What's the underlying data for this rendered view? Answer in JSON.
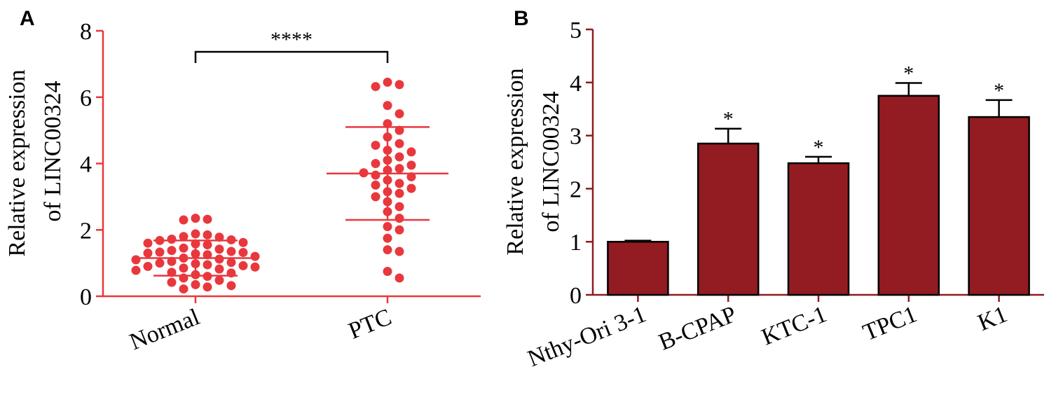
{
  "chart_data": [
    {
      "panel": "A",
      "type": "scatter",
      "ylabel_line1": "Relative expression",
      "ylabel_line2": "of LINC00324",
      "ylim": [
        0,
        8
      ],
      "yticks": [
        0,
        2,
        4,
        6,
        8
      ],
      "categories": [
        "Normal",
        "PTC"
      ],
      "color": "#e8383d",
      "significance": "****",
      "groups": [
        {
          "name": "Normal",
          "mean": 1.15,
          "sd_low": 0.62,
          "sd_high": 1.68,
          "points": [
            2.35,
            2.32,
            2.3,
            1.88,
            1.85,
            1.8,
            1.78,
            1.72,
            1.7,
            1.68,
            1.62,
            1.6,
            1.58,
            1.55,
            1.45,
            1.42,
            1.38,
            1.35,
            1.33,
            1.32,
            1.3,
            1.28,
            1.25,
            1.2,
            1.15,
            1.12,
            1.1,
            1.05,
            1.02,
            1.0,
            0.98,
            0.95,
            0.92,
            0.9,
            0.88,
            0.85,
            0.82,
            0.78,
            0.72,
            0.7,
            0.65,
            0.6,
            0.55,
            0.48,
            0.42,
            0.35,
            0.32,
            0.28,
            0.22
          ]
        },
        {
          "name": "PTC",
          "mean": 3.7,
          "sd_low": 2.3,
          "sd_high": 5.1,
          "points": [
            6.45,
            6.38,
            6.32,
            5.75,
            5.5,
            5.2,
            5.0,
            4.8,
            4.6,
            4.55,
            4.4,
            4.35,
            4.2,
            4.1,
            4.0,
            3.95,
            3.85,
            3.8,
            3.72,
            3.65,
            3.6,
            3.5,
            3.4,
            3.35,
            3.25,
            3.15,
            3.1,
            3.0,
            2.85,
            2.7,
            2.55,
            2.35,
            2.1,
            2.0,
            1.75,
            1.4,
            1.35,
            0.75,
            0.55
          ]
        }
      ]
    },
    {
      "panel": "B",
      "type": "bar",
      "ylabel_line1": "Relative expression",
      "ylabel_line2": "of LINC00324",
      "ylim": [
        0,
        5
      ],
      "yticks": [
        0,
        1,
        2,
        3,
        4,
        5
      ],
      "categories": [
        "Nthy-Ori 3-1",
        "B-CPAP",
        "KTC-1",
        "TPC1",
        "K1"
      ],
      "values": [
        1.0,
        2.85,
        2.48,
        3.75,
        3.35
      ],
      "errors": [
        0.02,
        0.28,
        0.12,
        0.24,
        0.32
      ],
      "significance": [
        "",
        "*",
        "*",
        "*",
        "*"
      ],
      "bar_color": "#921c22",
      "axis_color": "#8f1a20"
    }
  ]
}
